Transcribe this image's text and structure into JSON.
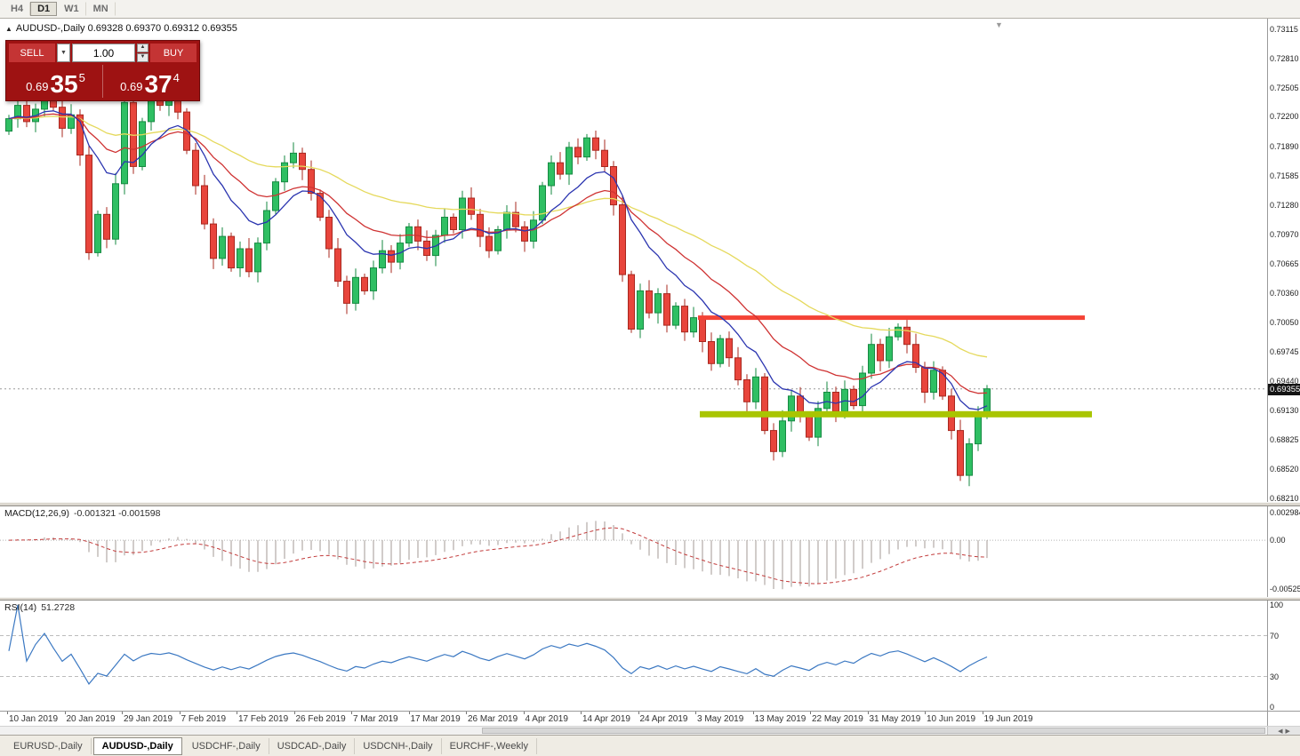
{
  "toolbar": {
    "timeframes": [
      {
        "label": "H4",
        "active": false
      },
      {
        "label": "D1",
        "active": true
      },
      {
        "label": "W1",
        "active": false
      },
      {
        "label": "MN",
        "active": false
      }
    ]
  },
  "chart": {
    "header_title": "AUDUSD-,Daily  0.69328 0.69370 0.69312 0.69355",
    "current_price": "0.69355",
    "price_axis_labels": [
      "0.73115",
      "0.72810",
      "0.72505",
      "0.72200",
      "0.71890",
      "0.71585",
      "0.71280",
      "0.70970",
      "0.70665",
      "0.70360",
      "0.70050",
      "0.69745",
      "0.69440",
      "0.69130",
      "0.68825",
      "0.68520",
      "0.68210"
    ]
  },
  "trade_panel": {
    "sell_label": "SELL",
    "buy_label": "BUY",
    "volume": "1.00",
    "sell_price": {
      "prefix": "0.69",
      "big": "35",
      "sup": "5"
    },
    "buy_price": {
      "prefix": "0.69",
      "big": "37",
      "sup": "4"
    }
  },
  "macd": {
    "name": "MACD(12,26,9)",
    "values": "-0.001321 -0.001598",
    "axis_labels": [
      "0.002984",
      "0.00",
      "-0.005256"
    ]
  },
  "rsi": {
    "name": "RSI(14)",
    "value": "51.2728",
    "axis_labels": [
      "100",
      "70",
      "30",
      "0"
    ]
  },
  "date_axis_labels": [
    "10 Jan 2019",
    "20 Jan 2019",
    "29 Jan 2019",
    "7 Feb 2019",
    "17 Feb 2019",
    "26 Feb 2019",
    "7 Mar 2019",
    "17 Mar 2019",
    "26 Mar 2019",
    "4 Apr 2019",
    "14 Apr 2019",
    "24 Apr 2019",
    "3 May 2019",
    "13 May 2019",
    "22 May 2019",
    "31 May 2019",
    "10 Jun 2019",
    "19 Jun 2019"
  ],
  "tabs": [
    {
      "label": "EURUSD-,Daily",
      "active": false
    },
    {
      "label": "AUDUSD-,Daily",
      "active": true
    },
    {
      "label": "USDCHF-,Daily",
      "active": false
    },
    {
      "label": "USDCAD-,Daily",
      "active": false
    },
    {
      "label": "USDCNH-,Daily",
      "active": false
    },
    {
      "label": "EURCHF-,Weekly",
      "active": false
    }
  ],
  "chart_data": {
    "type": "candlestick",
    "symbol": "AUDUSD",
    "timeframe": "Daily",
    "price_top": 0.73115,
    "price_bottom": 0.6821,
    "first_open": 0.7205,
    "closes": [
      0.7218,
      0.7232,
      0.7215,
      0.7228,
      0.7245,
      0.723,
      0.7208,
      0.7222,
      0.718,
      0.7078,
      0.7118,
      0.7092,
      0.715,
      0.7235,
      0.7168,
      0.7215,
      0.7242,
      0.7232,
      0.7248,
      0.7225,
      0.7185,
      0.7148,
      0.7108,
      0.7072,
      0.7095,
      0.7062,
      0.7082,
      0.7058,
      0.7088,
      0.7122,
      0.7152,
      0.7172,
      0.7182,
      0.7165,
      0.714,
      0.7115,
      0.7082,
      0.7048,
      0.7025,
      0.7052,
      0.7038,
      0.7062,
      0.708,
      0.7068,
      0.7088,
      0.7105,
      0.709,
      0.7075,
      0.7096,
      0.7115,
      0.7102,
      0.7135,
      0.7118,
      0.7095,
      0.708,
      0.7102,
      0.712,
      0.7105,
      0.709,
      0.7112,
      0.7148,
      0.7172,
      0.716,
      0.7188,
      0.7178,
      0.7198,
      0.7185,
      0.7168,
      0.7128,
      0.7055,
      0.6998,
      0.7038,
      0.7015,
      0.7035,
      0.7002,
      0.7022,
      0.6995,
      0.701,
      0.6985,
      0.6962,
      0.6988,
      0.6968,
      0.6945,
      0.6922,
      0.6948,
      0.6892,
      0.687,
      0.6902,
      0.6928,
      0.6908,
      0.6885,
      0.6915,
      0.6932,
      0.6912,
      0.6935,
      0.6918,
      0.6952,
      0.6982,
      0.6965,
      0.699,
      0.7,
      0.6982,
      0.6958,
      0.6932,
      0.6955,
      0.6928,
      0.6892,
      0.6845,
      0.6878,
      0.6908,
      0.69355
    ],
    "candle_up_color": "#2fbf63",
    "candle_down_color": "#e8453c",
    "moving_averages": [
      {
        "period": 45,
        "color": "#e5d95c"
      },
      {
        "period": 20,
        "color": "#cf3333"
      },
      {
        "period": 10,
        "color": "#2b35b0"
      }
    ],
    "resistance_line": {
      "price": 0.701,
      "color": "#f44336",
      "start_index": 77.5,
      "end_index": 121
    },
    "support_line": {
      "price": 0.6909,
      "color": "#a9c501",
      "start_index": 77.7,
      "end_index": 121.8
    },
    "macd_settings": {
      "fast": 12,
      "slow": 26,
      "signal": 9,
      "scale_top": 0.002984,
      "scale_bottom": -0.005256,
      "histogram_color": "#a39a94",
      "signal_color": "#c23b3b"
    },
    "rsi_settings": {
      "period": 14,
      "levels": [
        70,
        30
      ],
      "line_color": "#3b78c2"
    }
  }
}
